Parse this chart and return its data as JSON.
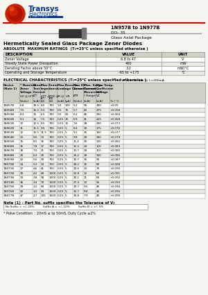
{
  "title_right_line1": "1N957B to 1N977B",
  "title_right_line2": "DO- 35",
  "title_right_line3": "Glass Axial Package",
  "page_title": "Hermetically Sealed Glass Package Zener Diodes",
  "abs_max_title": "ABSOLUTE  MAXIMUM RATINGS  (T₁=25°C unless specified otherwise )",
  "abs_max_rows": [
    [
      "Zener Voltage",
      "6.8 to 47",
      "V"
    ],
    [
      "Steady State Power Dissipation",
      "400",
      "mW"
    ],
    [
      "Derating Factor above 50°C",
      "3.2",
      "mW/°C"
    ],
    [
      "Operating and Storage Temperature",
      "-65 to +175",
      "°C"
    ]
  ],
  "elec_char_title": "ELECTRICAL CHARACTERISTICS (T₁=25°C unless specified otherwise )",
  "vf_note": "VF ≤ 1.5V max @ I₁=200mA",
  "elec_data": [
    [
      "1N957B",
      "6.8",
      "18.5",
      "4.5",
      "700",
      "1.0",
      "100",
      "5.2",
      "55",
      "300",
      "+0.05"
    ],
    [
      "1N958B",
      "7.5",
      "16.5",
      "5.5",
      "700",
      "0.5",
      "75",
      "5.7",
      "60",
      "275",
      "+0.058"
    ],
    [
      "1N959B",
      "8.2",
      "15",
      "6.5",
      "700",
      "0.5",
      "50",
      "6.2",
      "46",
      "250",
      "+0.065"
    ],
    [
      "1N960B",
      "9.1",
      "14",
      "7.5",
      "700",
      "0.25",
      "25",
      "6.9",
      "41",
      "225",
      "+0.068"
    ],
    [
      "1N961B",
      "10",
      "12.5",
      "8.5",
      "700",
      "0.25",
      "10",
      "7.6",
      "38",
      "200",
      "+0.073"
    ],
    [
      "1N962B",
      "11",
      "11.5",
      "9.5",
      "700",
      "0.25",
      "5",
      "8.4",
      "30",
      "175",
      "+0.076"
    ],
    [
      "1N963B",
      "12",
      "10.5",
      "11.5",
      "700",
      "0.25",
      "5",
      "9.1",
      "31",
      "160",
      "+0.077"
    ],
    [
      "1N964B",
      "13",
      "9.5",
      "13",
      "700",
      "0.25",
      "5",
      "9.9",
      "29",
      "150",
      "+0.079"
    ],
    [
      "1N965B",
      "15",
      "8.5",
      "16",
      "700",
      "0.25",
      "5",
      "11.4",
      "25",
      "130",
      "+0.082"
    ],
    [
      "1N966B",
      "16",
      "7.8",
      "17",
      "700",
      "0.25",
      "5",
      "12.2",
      "24",
      "120",
      "+0.083"
    ],
    [
      "1N967B",
      "18",
      "7.0",
      "21",
      "750",
      "0.25",
      "5",
      "13.7",
      "20",
      "110",
      "+0.085"
    ],
    [
      "1N968B",
      "20",
      "6.2",
      "25",
      "750",
      "0.25",
      "5",
      "15.2",
      "18",
      "100",
      "+0.086"
    ],
    [
      "1N969B",
      "22",
      "5.6",
      "29",
      "750",
      "0.25",
      "5",
      "16.7",
      "16",
      "90",
      "+0.087"
    ],
    [
      "1N970B",
      "24",
      "5.2",
      "33",
      "750",
      "0.25",
      "5",
      "18.2",
      "15",
      "80",
      "+0.088"
    ],
    [
      "1N971B",
      "27",
      "4.6",
      "41",
      "750",
      "0.25",
      "5",
      "20.6",
      "13",
      "70",
      "+0.090"
    ],
    [
      "1N972B",
      "30",
      "4.2",
      "49",
      "1000",
      "0.25",
      "5",
      "22.8",
      "12",
      "65",
      "+0.091"
    ],
    [
      "1N973B",
      "33",
      "3.8",
      "58",
      "1000",
      "0.25",
      "5",
      "25.1",
      "11",
      "60",
      "+0.092"
    ],
    [
      "1N974B",
      "36",
      "3.4",
      "70",
      "1000",
      "0.25",
      "5",
      "27.4",
      "10",
      "55",
      "+0.093"
    ],
    [
      "1N975B",
      "39",
      "3.2",
      "80",
      "1000",
      "0.25",
      "5",
      "29.7",
      "9.5",
      "46",
      "+0.094"
    ],
    [
      "1N976B",
      "43",
      "3.0",
      "93",
      "1500",
      "0.25",
      "5",
      "32.7",
      "8.8",
      "44",
      "+0.095"
    ],
    [
      "1N977B",
      "47",
      "2.7",
      "105",
      "1500",
      "0.25",
      "5",
      "35.8",
      "7.9",
      "40",
      "+0.095"
    ]
  ],
  "note1": "Note (1) : Part No. suffix specifies the Tolerance of V₂",
  "note1_suffixes": "No Suffix = +/- 20%          Suffix A = +/- 10%          Suffix B = +/- 5%",
  "note2": "* Pulse Condition  : 20mS ≤ tp 50mS, Duty Cycle ≤2%",
  "bg_color": "#f5f5f0",
  "header_bg": "#d0cfc8",
  "border_color": "#888880",
  "red_line_color": "#cc0000",
  "blue_color": "#003399"
}
